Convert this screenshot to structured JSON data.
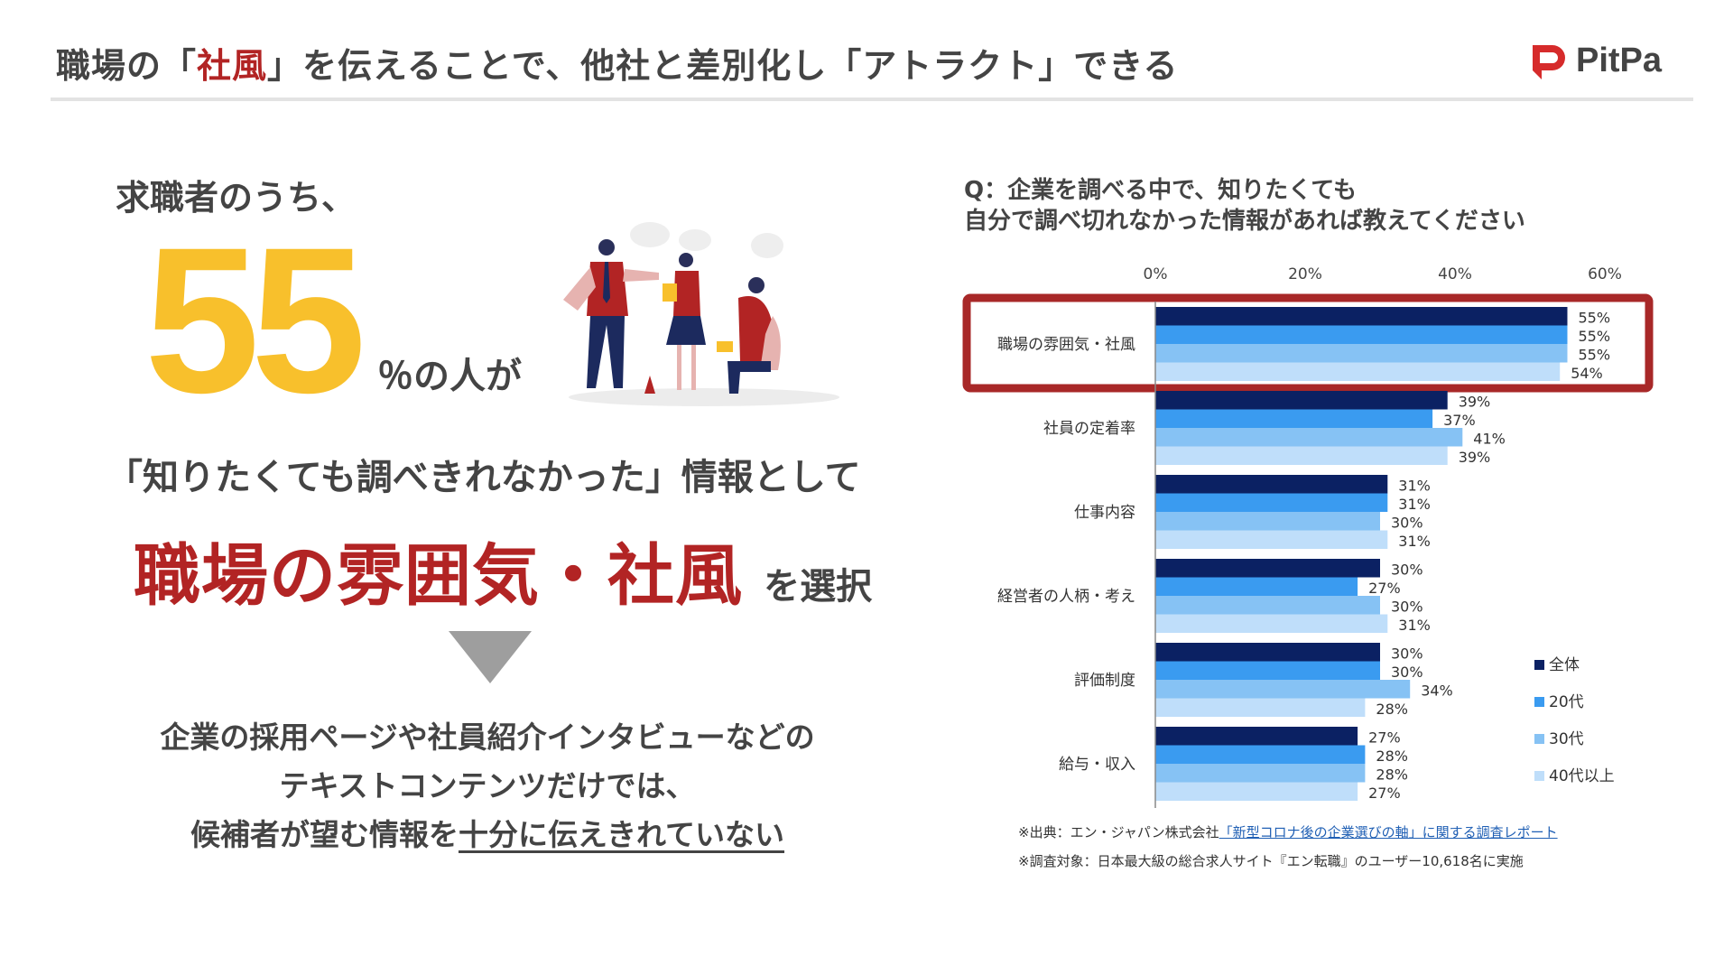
{
  "header": {
    "title_prefix": "職場の「",
    "title_accent": "社風",
    "title_suffix": "」を伝えることで、他社と差別化し「アトラクト」できる",
    "brand_name": "PitPa",
    "brand_color": "#d62b2b"
  },
  "left": {
    "lead": "求職者のうち、",
    "big_number": "55",
    "big_number_suffix": "％の人が",
    "quote_line": "「知りたくても調べきれなかった」情報として",
    "highlight_main": "職場の雰囲気・社風",
    "highlight_sub": "を選択",
    "conclusion_line1": "企業の採用ページや社員紹介インタビューなどの",
    "conclusion_line2": "テキストコンテンツだけでは、",
    "conclusion_line3_prefix": "候補者が望む情報を",
    "conclusion_line3_underlined": "十分に伝えきれていない",
    "illustration_icon": "business-people-discussion-illustration"
  },
  "chart_title": {
    "line1": "Q：企業を調べる中で、知りたくても",
    "line2": "自分で調べ切れなかった情報があれば教えてください"
  },
  "chart_data": {
    "type": "bar",
    "orientation": "horizontal",
    "categories": [
      "職場の雰囲気・社風",
      "社員の定着率",
      "仕事内容",
      "経営者の人柄・考え",
      "評価制度",
      "給与・収入"
    ],
    "series": [
      {
        "name": "全体",
        "color": "#0b2163",
        "values": [
          55,
          39,
          31,
          30,
          30,
          27
        ]
      },
      {
        "name": "20代",
        "color": "#3a9bf0",
        "values": [
          55,
          37,
          31,
          27,
          30,
          28
        ]
      },
      {
        "name": "30代",
        "color": "#86c2f4",
        "values": [
          55,
          41,
          30,
          30,
          34,
          28
        ]
      },
      {
        "name": "40代以上",
        "color": "#bfdefa",
        "values": [
          54,
          39,
          31,
          31,
          28,
          27
        ]
      }
    ],
    "x_ticks": [
      "0%",
      "20%",
      "40%",
      "60%"
    ],
    "xlim": [
      0,
      60
    ],
    "value_suffix": "%",
    "highlight_category_index": 0,
    "highlight_color": "#a82828",
    "legend_position": "right"
  },
  "source": {
    "line1_prefix": "※出典：エン・ジャパン株式会社",
    "line1_link": "「新型コロナ後の企業選びの軸」に関する調査レポート",
    "line2": "※調査対象：日本最大級の総合求人サイト『エン転職』のユーザー10,618名に実施"
  }
}
